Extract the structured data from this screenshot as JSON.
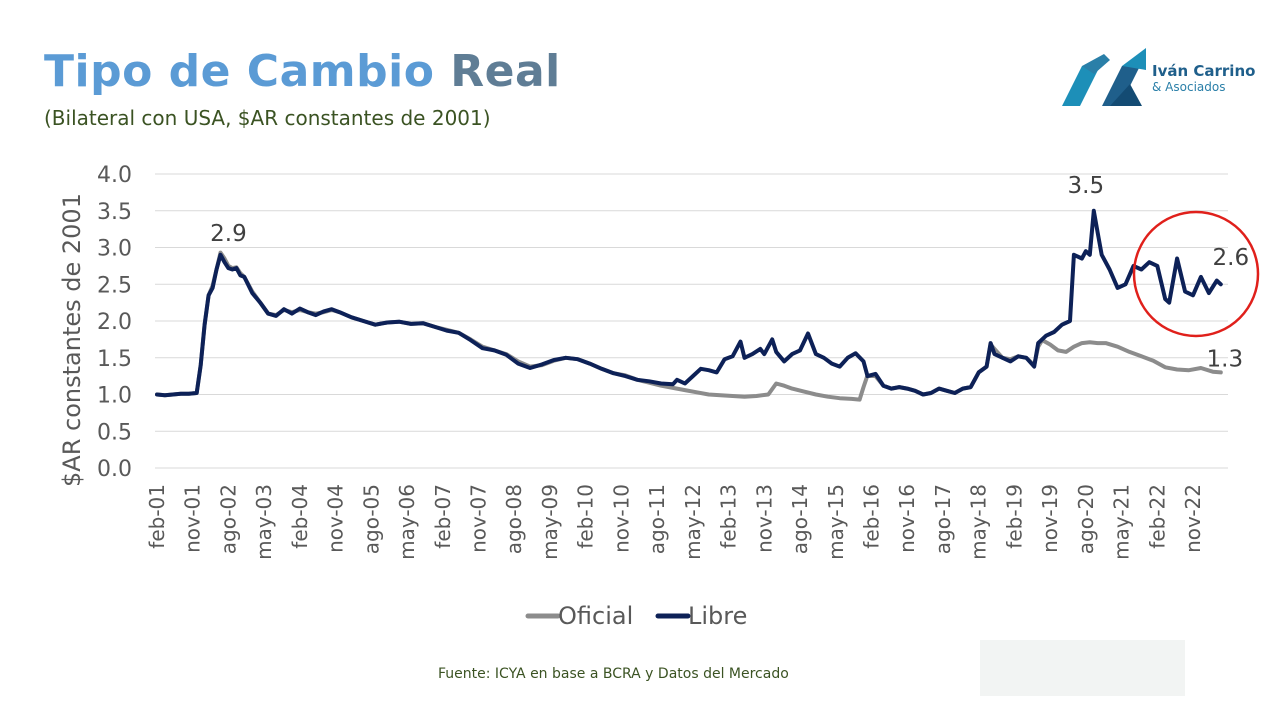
{
  "header": {
    "title_part1": "Tipo de Cambio",
    "title_part2": "Real",
    "subtitle": "(Bilateral con USA, $AR constantes de 2001)"
  },
  "logo": {
    "name": "Iván Carrino",
    "sub": "& Asociados"
  },
  "footer": {
    "source": "Fuente: ICYA en base a BCRA y Datos del Mercado"
  },
  "colors": {
    "oficial": "#8c8c8c",
    "libre": "#0d2157",
    "highlight_circle": "#e0201b",
    "title_blue": "#5b9bd5",
    "title_slate": "#5f7d95"
  },
  "chart_data": {
    "type": "line",
    "title": "Tipo de Cambio Real",
    "subtitle": "(Bilateral con USA, $AR constantes de 2001)",
    "ylabel": "$AR constantes de 2001",
    "xlabel": "",
    "ylim": [
      0.0,
      4.0
    ],
    "yticks": [
      "0.0",
      "0.5",
      "1.0",
      "1.5",
      "2.0",
      "2.5",
      "3.0",
      "3.5",
      "4.0"
    ],
    "xticks": [
      "feb-01",
      "nov-01",
      "ago-02",
      "may-03",
      "feb-04",
      "nov-04",
      "ago-05",
      "may-06",
      "feb-07",
      "nov-07",
      "ago-08",
      "may-09",
      "feb-10",
      "nov-10",
      "ago-11",
      "may-12",
      "feb-13",
      "nov-13",
      "ago-14",
      "may-15",
      "feb-16",
      "nov-16",
      "ago-17",
      "may-18",
      "feb-19",
      "nov-19",
      "ago-20",
      "may-21",
      "feb-22",
      "nov-22"
    ],
    "grid": true,
    "legend_position": "bottom",
    "annotations": [
      {
        "text": "2.9",
        "x": "ago-02",
        "y": 2.9
      },
      {
        "text": "3.5",
        "x": "ago-20",
        "y": 3.5
      },
      {
        "text": "2.6",
        "x": "may-23",
        "y": 2.6
      },
      {
        "text": "1.3",
        "x": "may-23",
        "y": 1.3
      }
    ],
    "highlight": "red circle around the Libre series from late 2021 to 2023",
    "series": [
      {
        "name": "Oficial",
        "color": "#8c8c8c",
        "points": [
          [
            "2001-02",
            1.0
          ],
          [
            "2001-04",
            0.99
          ],
          [
            "2001-06",
            1.0
          ],
          [
            "2001-08",
            1.01
          ],
          [
            "2001-10",
            1.01
          ],
          [
            "2001-12",
            1.02
          ],
          [
            "2002-01",
            1.4
          ],
          [
            "2002-02",
            1.95
          ],
          [
            "2002-03",
            2.35
          ],
          [
            "2002-04",
            2.48
          ],
          [
            "2002-05",
            2.7
          ],
          [
            "2002-06",
            2.93
          ],
          [
            "2002-07",
            2.85
          ],
          [
            "2002-08",
            2.75
          ],
          [
            "2002-09",
            2.72
          ],
          [
            "2002-10",
            2.73
          ],
          [
            "2002-11",
            2.65
          ],
          [
            "2002-12",
            2.6
          ],
          [
            "2003-02",
            2.4
          ],
          [
            "2003-04",
            2.25
          ],
          [
            "2003-06",
            2.1
          ],
          [
            "2003-08",
            2.08
          ],
          [
            "2003-10",
            2.15
          ],
          [
            "2003-12",
            2.12
          ],
          [
            "2004-02",
            2.15
          ],
          [
            "2004-04",
            2.12
          ],
          [
            "2004-06",
            2.1
          ],
          [
            "2004-08",
            2.12
          ],
          [
            "2004-10",
            2.15
          ],
          [
            "2004-12",
            2.12
          ],
          [
            "2005-03",
            2.05
          ],
          [
            "2005-06",
            2.0
          ],
          [
            "2005-09",
            1.95
          ],
          [
            "2005-12",
            1.98
          ],
          [
            "2006-03",
            1.99
          ],
          [
            "2006-06",
            1.96
          ],
          [
            "2006-09",
            1.97
          ],
          [
            "2006-12",
            1.92
          ],
          [
            "2007-03",
            1.88
          ],
          [
            "2007-06",
            1.84
          ],
          [
            "2007-09",
            1.75
          ],
          [
            "2007-12",
            1.65
          ],
          [
            "2008-03",
            1.6
          ],
          [
            "2008-06",
            1.55
          ],
          [
            "2008-09",
            1.45
          ],
          [
            "2008-12",
            1.38
          ],
          [
            "2009-03",
            1.4
          ],
          [
            "2009-06",
            1.46
          ],
          [
            "2009-09",
            1.5
          ],
          [
            "2009-12",
            1.48
          ],
          [
            "2010-03",
            1.42
          ],
          [
            "2010-06",
            1.35
          ],
          [
            "2010-09",
            1.29
          ],
          [
            "2010-12",
            1.26
          ],
          [
            "2011-03",
            1.2
          ],
          [
            "2011-06",
            1.16
          ],
          [
            "2011-09",
            1.12
          ],
          [
            "2011-12",
            1.09
          ],
          [
            "2012-03",
            1.06
          ],
          [
            "2012-06",
            1.03
          ],
          [
            "2012-09",
            1.0
          ],
          [
            "2012-12",
            0.99
          ],
          [
            "2013-03",
            0.98
          ],
          [
            "2013-06",
            0.97
          ],
          [
            "2013-09",
            0.98
          ],
          [
            "2013-12",
            1.0
          ],
          [
            "2014-02",
            1.15
          ],
          [
            "2014-04",
            1.12
          ],
          [
            "2014-06",
            1.08
          ],
          [
            "2014-09",
            1.04
          ],
          [
            "2014-12",
            1.0
          ],
          [
            "2015-03",
            0.97
          ],
          [
            "2015-06",
            0.95
          ],
          [
            "2015-09",
            0.94
          ],
          [
            "2015-11",
            0.93
          ],
          [
            "2015-12",
            1.1
          ],
          [
            "2016-01",
            1.26
          ],
          [
            "2016-03",
            1.25
          ],
          [
            "2016-05",
            1.12
          ],
          [
            "2016-07",
            1.08
          ],
          [
            "2016-09",
            1.1
          ],
          [
            "2016-11",
            1.08
          ],
          [
            "2017-01",
            1.05
          ],
          [
            "2017-03",
            1.0
          ],
          [
            "2017-05",
            1.02
          ],
          [
            "2017-07",
            1.08
          ],
          [
            "2017-09",
            1.05
          ],
          [
            "2017-11",
            1.02
          ],
          [
            "2018-01",
            1.08
          ],
          [
            "2018-03",
            1.1
          ],
          [
            "2018-05",
            1.3
          ],
          [
            "2018-07",
            1.38
          ],
          [
            "2018-08",
            1.68
          ],
          [
            "2018-09",
            1.62
          ],
          [
            "2018-11",
            1.5
          ],
          [
            "2019-01",
            1.48
          ],
          [
            "2019-03",
            1.52
          ],
          [
            "2019-05",
            1.5
          ],
          [
            "2019-07",
            1.4
          ],
          [
            "2019-08",
            1.65
          ],
          [
            "2019-09",
            1.74
          ],
          [
            "2019-11",
            1.68
          ],
          [
            "2020-01",
            1.6
          ],
          [
            "2020-03",
            1.58
          ],
          [
            "2020-05",
            1.65
          ],
          [
            "2020-07",
            1.7
          ],
          [
            "2020-09",
            1.71
          ],
          [
            "2020-11",
            1.7
          ],
          [
            "2021-01",
            1.7
          ],
          [
            "2021-04",
            1.65
          ],
          [
            "2021-07",
            1.58
          ],
          [
            "2021-10",
            1.52
          ],
          [
            "2022-01",
            1.46
          ],
          [
            "2022-04",
            1.37
          ],
          [
            "2022-07",
            1.34
          ],
          [
            "2022-10",
            1.33
          ],
          [
            "2023-01",
            1.36
          ],
          [
            "2023-04",
            1.31
          ],
          [
            "2023-06",
            1.3
          ]
        ]
      },
      {
        "name": "Libre",
        "color": "#0d2157",
        "points": [
          [
            "2001-02",
            1.0
          ],
          [
            "2001-04",
            0.99
          ],
          [
            "2001-06",
            1.0
          ],
          [
            "2001-08",
            1.01
          ],
          [
            "2001-10",
            1.01
          ],
          [
            "2001-12",
            1.02
          ],
          [
            "2002-01",
            1.4
          ],
          [
            "2002-02",
            1.95
          ],
          [
            "2002-03",
            2.35
          ],
          [
            "2002-04",
            2.45
          ],
          [
            "2002-05",
            2.7
          ],
          [
            "2002-06",
            2.9
          ],
          [
            "2002-07",
            2.8
          ],
          [
            "2002-08",
            2.72
          ],
          [
            "2002-09",
            2.7
          ],
          [
            "2002-10",
            2.72
          ],
          [
            "2002-11",
            2.62
          ],
          [
            "2002-12",
            2.6
          ],
          [
            "2003-02",
            2.38
          ],
          [
            "2003-04",
            2.25
          ],
          [
            "2003-06",
            2.1
          ],
          [
            "2003-08",
            2.07
          ],
          [
            "2003-10",
            2.16
          ],
          [
            "2003-12",
            2.1
          ],
          [
            "2004-02",
            2.17
          ],
          [
            "2004-04",
            2.12
          ],
          [
            "2004-06",
            2.08
          ],
          [
            "2004-08",
            2.13
          ],
          [
            "2004-10",
            2.16
          ],
          [
            "2004-12",
            2.12
          ],
          [
            "2005-03",
            2.05
          ],
          [
            "2005-06",
            2.0
          ],
          [
            "2005-09",
            1.95
          ],
          [
            "2005-12",
            1.98
          ],
          [
            "2006-03",
            1.99
          ],
          [
            "2006-06",
            1.96
          ],
          [
            "2006-09",
            1.97
          ],
          [
            "2006-12",
            1.92
          ],
          [
            "2007-03",
            1.87
          ],
          [
            "2007-06",
            1.84
          ],
          [
            "2007-09",
            1.74
          ],
          [
            "2007-12",
            1.63
          ],
          [
            "2008-03",
            1.6
          ],
          [
            "2008-06",
            1.54
          ],
          [
            "2008-09",
            1.42
          ],
          [
            "2008-12",
            1.36
          ],
          [
            "2009-03",
            1.41
          ],
          [
            "2009-06",
            1.47
          ],
          [
            "2009-09",
            1.5
          ],
          [
            "2009-12",
            1.48
          ],
          [
            "2010-03",
            1.42
          ],
          [
            "2010-06",
            1.35
          ],
          [
            "2010-09",
            1.29
          ],
          [
            "2010-12",
            1.25
          ],
          [
            "2011-03",
            1.2
          ],
          [
            "2011-06",
            1.18
          ],
          [
            "2011-09",
            1.15
          ],
          [
            "2011-12",
            1.14
          ],
          [
            "2012-01",
            1.2
          ],
          [
            "2012-03",
            1.15
          ],
          [
            "2012-05",
            1.25
          ],
          [
            "2012-07",
            1.35
          ],
          [
            "2012-09",
            1.33
          ],
          [
            "2012-11",
            1.3
          ],
          [
            "2013-01",
            1.48
          ],
          [
            "2013-03",
            1.52
          ],
          [
            "2013-05",
            1.72
          ],
          [
            "2013-06",
            1.5
          ],
          [
            "2013-08",
            1.55
          ],
          [
            "2013-10",
            1.62
          ],
          [
            "2013-11",
            1.55
          ],
          [
            "2014-01",
            1.75
          ],
          [
            "2014-02",
            1.58
          ],
          [
            "2014-04",
            1.45
          ],
          [
            "2014-06",
            1.55
          ],
          [
            "2014-08",
            1.6
          ],
          [
            "2014-10",
            1.83
          ],
          [
            "2014-12",
            1.55
          ],
          [
            "2015-02",
            1.5
          ],
          [
            "2015-04",
            1.42
          ],
          [
            "2015-06",
            1.38
          ],
          [
            "2015-08",
            1.5
          ],
          [
            "2015-10",
            1.56
          ],
          [
            "2015-12",
            1.45
          ],
          [
            "2016-01",
            1.25
          ],
          [
            "2016-03",
            1.28
          ],
          [
            "2016-05",
            1.12
          ],
          [
            "2016-07",
            1.08
          ],
          [
            "2016-09",
            1.1
          ],
          [
            "2016-11",
            1.08
          ],
          [
            "2017-01",
            1.05
          ],
          [
            "2017-03",
            1.0
          ],
          [
            "2017-05",
            1.02
          ],
          [
            "2017-07",
            1.08
          ],
          [
            "2017-09",
            1.05
          ],
          [
            "2017-11",
            1.02
          ],
          [
            "2018-01",
            1.08
          ],
          [
            "2018-03",
            1.1
          ],
          [
            "2018-05",
            1.3
          ],
          [
            "2018-07",
            1.38
          ],
          [
            "2018-08",
            1.7
          ],
          [
            "2018-09",
            1.55
          ],
          [
            "2018-11",
            1.5
          ],
          [
            "2019-01",
            1.45
          ],
          [
            "2019-03",
            1.52
          ],
          [
            "2019-05",
            1.5
          ],
          [
            "2019-07",
            1.38
          ],
          [
            "2019-08",
            1.7
          ],
          [
            "2019-10",
            1.8
          ],
          [
            "2019-12",
            1.85
          ],
          [
            "2020-02",
            1.95
          ],
          [
            "2020-04",
            2.0
          ],
          [
            "2020-05",
            2.9
          ],
          [
            "2020-07",
            2.85
          ],
          [
            "2020-08",
            2.95
          ],
          [
            "2020-09",
            2.9
          ],
          [
            "2020-10",
            3.5
          ],
          [
            "2020-11",
            3.2
          ],
          [
            "2020-12",
            2.9
          ],
          [
            "2021-02",
            2.7
          ],
          [
            "2021-04",
            2.45
          ],
          [
            "2021-06",
            2.5
          ],
          [
            "2021-08",
            2.75
          ],
          [
            "2021-10",
            2.7
          ],
          [
            "2021-12",
            2.8
          ],
          [
            "2022-02",
            2.75
          ],
          [
            "2022-04",
            2.3
          ],
          [
            "2022-05",
            2.25
          ],
          [
            "2022-07",
            2.85
          ],
          [
            "2022-09",
            2.4
          ],
          [
            "2022-11",
            2.35
          ],
          [
            "2023-01",
            2.6
          ],
          [
            "2023-03",
            2.38
          ],
          [
            "2023-05",
            2.55
          ],
          [
            "2023-06",
            2.5
          ]
        ]
      }
    ]
  }
}
